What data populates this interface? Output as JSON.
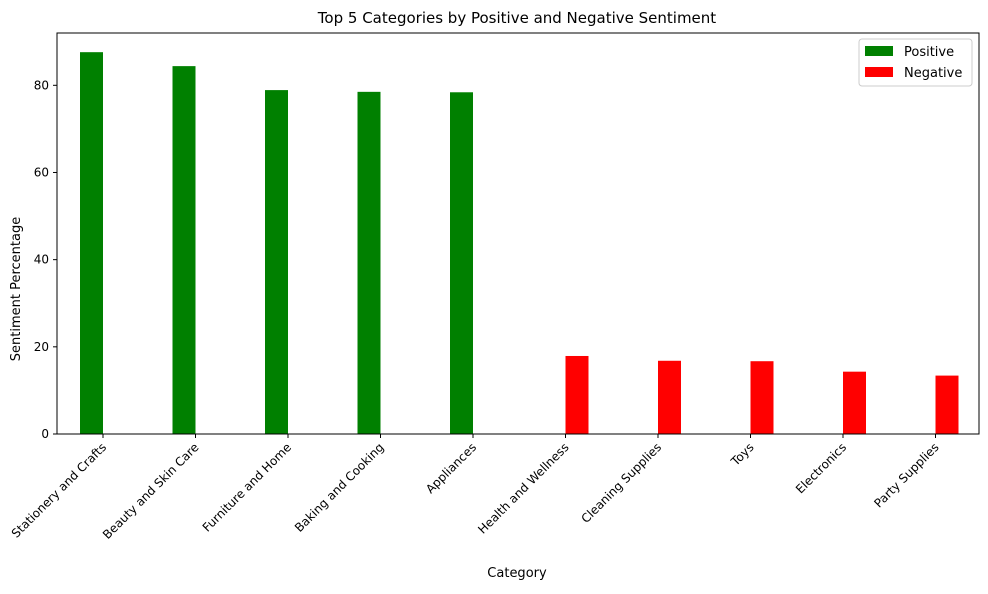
{
  "chart_data": {
    "type": "bar",
    "title": "Top 5 Categories by Positive and Negative Sentiment",
    "xlabel": "Category",
    "ylabel": "Sentiment Percentage",
    "ylim": [
      0,
      92
    ],
    "yticks": [
      0,
      20,
      40,
      60,
      80
    ],
    "grid": false,
    "legend_position": "top-right",
    "categories": [
      "Stationery and Crafts",
      "Beauty and Skin Care",
      "Furniture and Home",
      "Baking and Cooking",
      "Appliances",
      "Health and Wellness",
      "Cleaning Supplies",
      "Toys",
      "Electronics",
      "Party Supplies"
    ],
    "series": [
      {
        "name": "Positive",
        "color": "#008000",
        "values": [
          87.6,
          84.4,
          78.9,
          78.5,
          78.4,
          null,
          null,
          null,
          null,
          null
        ]
      },
      {
        "name": "Negative",
        "color": "#ff0000",
        "values": [
          null,
          null,
          null,
          null,
          null,
          17.9,
          16.8,
          16.7,
          14.3,
          13.4
        ]
      }
    ]
  }
}
